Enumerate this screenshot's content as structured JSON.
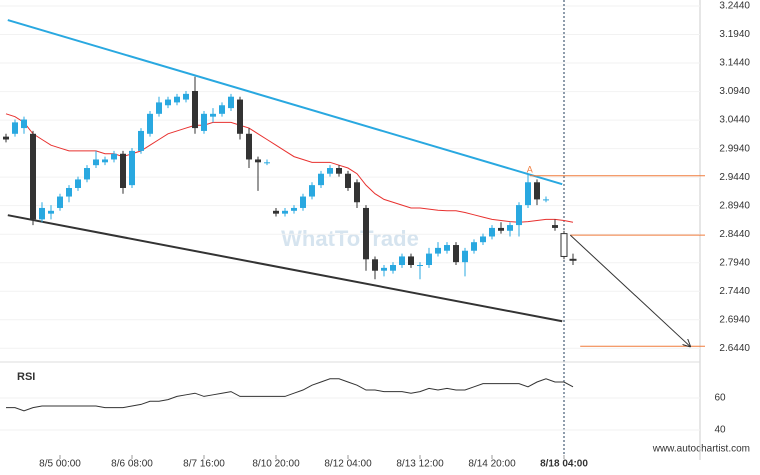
{
  "chart_data": [
    {
      "type": "candlestick",
      "categories": [
        null,
        null,
        null,
        null,
        null,
        null,
        "8/5 00:00",
        null,
        null,
        null,
        null,
        null,
        null,
        null,
        "8/6 08:00",
        null,
        null,
        null,
        null,
        null,
        null,
        null,
        "8/7 16:00",
        null,
        null,
        null,
        null,
        null,
        null,
        null,
        "8/10 20:00",
        null,
        null,
        null,
        null,
        null,
        null,
        null,
        "8/12 04:00",
        null,
        null,
        null,
        null,
        null,
        null,
        null,
        "8/13 12:00",
        null,
        null,
        null,
        null,
        null,
        null,
        null,
        "8/14 20:00",
        null,
        null,
        null,
        null,
        null,
        null,
        null,
        "8/18 04:00",
        null
      ],
      "open": [
        3.015,
        3.02,
        3.03,
        3.02,
        2.87,
        2.88,
        2.89,
        2.91,
        2.925,
        2.94,
        2.965,
        2.97,
        2.975,
        2.985,
        2.93,
        2.99,
        3.02,
        3.055,
        3.07,
        3.075,
        3.08,
        3.095,
        3.025,
        3.05,
        3.055,
        3.065,
        3.08,
        3.02,
        2.975,
        2.97,
        2.885,
        2.88,
        2.885,
        2.89,
        2.91,
        2.93,
        2.95,
        2.96,
        2.95,
        2.935,
        2.89,
        2.8,
        2.78,
        2.78,
        2.79,
        2.805,
        2.79,
        2.79,
        2.81,
        2.815,
        2.825,
        2.795,
        2.815,
        2.83,
        2.84,
        2.855,
        2.85,
        2.86,
        2.895,
        2.935,
        2.905,
        2.86,
        2.845,
        2.8
      ],
      "high": [
        3.02,
        3.045,
        3.05,
        3.025,
        2.9,
        2.895,
        2.915,
        2.93,
        2.945,
        2.965,
        2.99,
        2.98,
        2.99,
        2.99,
        2.995,
        3.03,
        3.06,
        3.085,
        3.085,
        3.09,
        3.095,
        3.12,
        3.06,
        3.065,
        3.075,
        3.09,
        3.085,
        3.03,
        2.98,
        2.975,
        2.89,
        2.89,
        2.895,
        2.915,
        2.935,
        2.955,
        2.965,
        2.965,
        2.955,
        2.94,
        2.895,
        2.805,
        2.79,
        2.795,
        2.81,
        2.81,
        2.795,
        2.82,
        2.83,
        2.83,
        2.83,
        2.82,
        2.835,
        2.845,
        2.86,
        2.865,
        2.865,
        2.9,
        2.95,
        2.94,
        2.91,
        2.87,
        2.85,
        2.81
      ],
      "low": [
        3.005,
        3.015,
        3.02,
        2.86,
        2.865,
        2.87,
        2.885,
        2.9,
        2.92,
        2.935,
        2.96,
        2.965,
        2.97,
        2.915,
        2.925,
        2.985,
        3.015,
        3.05,
        3.065,
        3.07,
        3.075,
        3.02,
        3.02,
        3.04,
        3.05,
        3.06,
        3.01,
        2.96,
        2.92,
        2.965,
        2.875,
        2.875,
        2.88,
        2.885,
        2.905,
        2.925,
        2.945,
        2.945,
        2.92,
        2.89,
        2.78,
        2.765,
        2.77,
        2.775,
        2.785,
        2.785,
        2.765,
        2.785,
        2.805,
        2.81,
        2.79,
        2.77,
        2.81,
        2.825,
        2.835,
        2.845,
        2.84,
        2.84,
        2.89,
        2.895,
        2.9,
        2.85,
        2.8,
        2.79
      ],
      "close": [
        3.01,
        3.04,
        3.045,
        2.87,
        2.89,
        2.885,
        2.91,
        2.925,
        2.94,
        2.96,
        2.975,
        2.975,
        2.985,
        2.925,
        2.99,
        3.025,
        3.055,
        3.075,
        3.08,
        3.085,
        3.09,
        3.03,
        3.055,
        3.055,
        3.07,
        3.085,
        3.02,
        2.975,
        2.97,
        2.97,
        2.88,
        2.885,
        2.89,
        2.91,
        2.93,
        2.95,
        2.96,
        2.95,
        2.925,
        2.9,
        2.8,
        2.78,
        2.785,
        2.79,
        2.805,
        2.79,
        2.79,
        2.81,
        2.82,
        2.825,
        2.795,
        2.815,
        2.83,
        2.84,
        2.855,
        2.85,
        2.86,
        2.895,
        2.935,
        2.905,
        2.905,
        2.855,
        2.805,
        2.8
      ],
      "up_color": "#29a8e0",
      "down_color": "#333333",
      "projection_start": 62,
      "moving_average": {
        "color": "#e8312f",
        "values": [
          3.055,
          3.05,
          3.04,
          3.02,
          3.01,
          3.0,
          2.995,
          2.99,
          2.99,
          2.99,
          2.99,
          2.985,
          2.985,
          2.98,
          2.985,
          2.99,
          3.0,
          3.01,
          3.02,
          3.025,
          3.03,
          3.035,
          3.035,
          3.04,
          3.04,
          3.04,
          3.035,
          3.03,
          3.02,
          3.01,
          3.0,
          2.99,
          2.98,
          2.975,
          2.97,
          2.97,
          2.97,
          2.965,
          2.96,
          2.95,
          2.93,
          2.915,
          2.905,
          2.9,
          2.895,
          2.89,
          2.89,
          2.888,
          2.886,
          2.885,
          2.885,
          2.882,
          2.878,
          2.874,
          2.87,
          2.868,
          2.866,
          2.865,
          2.866,
          2.868,
          2.87,
          2.87,
          2.868,
          2.865
        ]
      },
      "trendlines": [
        {
          "color": "#29a8e0",
          "points": [
            [
              0.2,
              3.2194
            ],
            [
              61.8,
              2.9317
            ]
          ]
        },
        {
          "color": "#333333",
          "points": [
            [
              0.2,
              2.8773
            ],
            [
              61.8,
              2.6914
            ]
          ]
        }
      ],
      "levels": [
        {
          "value": 2.9465,
          "start": 58.2
        },
        {
          "value": 2.8423,
          "start": 62.7
        },
        {
          "value": 2.6475,
          "start": 63.8
        }
      ],
      "level_color": "#f07c3c",
      "annotation": {
        "text": "A",
        "x": 58.2,
        "y": 2.9565
      },
      "arrow": [
        [
          62.7,
          2.8423
        ],
        [
          76,
          2.6475
        ]
      ],
      "ylim": [
        2.6235,
        3.2545
      ],
      "yticks": [
        {
          "value": 3.244,
          "label": "3.2440"
        },
        {
          "value": 3.194,
          "label": "3.1940"
        },
        {
          "value": 3.144,
          "label": "3.1440"
        },
        {
          "value": 3.094,
          "label": "3.0940"
        },
        {
          "value": 3.044,
          "label": "3.0440"
        },
        {
          "value": 2.994,
          "label": "2.9940"
        },
        {
          "value": 2.944,
          "label": "2.9440"
        },
        {
          "value": 2.894,
          "label": "2.8940"
        },
        {
          "value": 2.844,
          "label": "2.8440"
        },
        {
          "value": 2.794,
          "label": "2.7940"
        },
        {
          "value": 2.744,
          "label": "2.7440"
        },
        {
          "value": 2.694,
          "label": "2.6940"
        },
        {
          "value": 2.644,
          "label": "2.6440"
        }
      ]
    },
    {
      "type": "line",
      "title": "RSI",
      "color": "#333333",
      "values": [
        54,
        54,
        52,
        54,
        55,
        55,
        55,
        55,
        55,
        55,
        55,
        54,
        54,
        54,
        55,
        56,
        58,
        58,
        59,
        61,
        62,
        63,
        61,
        62,
        63,
        64,
        61,
        61,
        61,
        61,
        61,
        61,
        63,
        65,
        68,
        70,
        72,
        72,
        70,
        68,
        65,
        65,
        64,
        64,
        64,
        63,
        64,
        66,
        65,
        66,
        65,
        65,
        67,
        69,
        69,
        69,
        69,
        69,
        67,
        70,
        72,
        70,
        70,
        67
      ],
      "ylim": [
        24.4,
        82.5
      ],
      "yticks": [
        60,
        40
      ]
    }
  ],
  "watermark": "WhatToTrade",
  "footer": "www.autochartist.com"
}
